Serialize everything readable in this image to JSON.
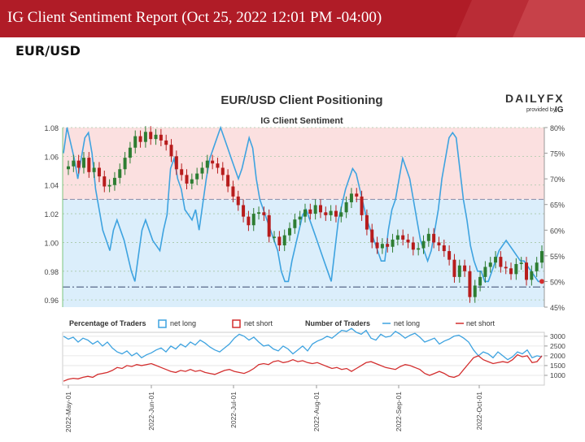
{
  "header": {
    "report_title": "IG Client Sentiment Report (Oct 25, 2022 12:01 PM -04:00)",
    "pair": "EUR/USD"
  },
  "colors": {
    "banner": "#b01c27",
    "net_long": "#3ea3e0",
    "net_short": "#d32f2f",
    "long_zone": "#dbeefb",
    "short_zone": "#fbe0e0",
    "candle_up": "#2e7d32",
    "candle_down": "#b71c1c"
  },
  "chart_data": [
    {
      "type": "line",
      "title": "EUR/USD Client Positioning",
      "subtitle": "IG Client Sentiment",
      "brand": {
        "main": "DAILYFX",
        "sub": "provided by",
        "mark": "IG"
      },
      "y_left": {
        "ticks": [
          "1.08",
          "1.06",
          "1.04",
          "1.02",
          "1.00",
          "0.98",
          "0.96"
        ],
        "range": [
          0.955,
          1.08
        ]
      },
      "y_right": {
        "ticks": [
          "80%",
          "75%",
          "70%",
          "65%",
          "60%",
          "55%",
          "50%",
          "45%"
        ],
        "range": [
          45,
          80
        ]
      },
      "reference_lines": {
        "price": 0.969,
        "percent": 66
      },
      "series": [
        {
          "role": "sentiment-net-long-pct",
          "axis": "right",
          "values": [
            75,
            80,
            77,
            74,
            70,
            74,
            78,
            79,
            75,
            68,
            64,
            60,
            58,
            56,
            60,
            62,
            60,
            58,
            55,
            52,
            50,
            55,
            60,
            62,
            60,
            58,
            57,
            56,
            60,
            63,
            72,
            74,
            70,
            68,
            64,
            63,
            62,
            64,
            60,
            65,
            70,
            74,
            76,
            78,
            80,
            78,
            76,
            74,
            72,
            70,
            72,
            75,
            78,
            76,
            70,
            66,
            64,
            62,
            60,
            58,
            56,
            52,
            50,
            50,
            54,
            57,
            60,
            63,
            64,
            62,
            60,
            58,
            56,
            54,
            52,
            50,
            56,
            62,
            65,
            68,
            70,
            72,
            71,
            68,
            65,
            62,
            60,
            58,
            56,
            54,
            54,
            60,
            64,
            66,
            70,
            74,
            72,
            70,
            66,
            62,
            58,
            56,
            54,
            56,
            60,
            64,
            70,
            74,
            78,
            79,
            78,
            72,
            66,
            62,
            57,
            54,
            52,
            52,
            50,
            50,
            52,
            54,
            56,
            57,
            58,
            57,
            56,
            55,
            54,
            54,
            53,
            52,
            51,
            50,
            50
          ]
        },
        {
          "role": "price-candles",
          "axis": "left",
          "values": [
            1.053,
            1.057,
            1.052,
            1.059,
            1.049,
            1.052,
            1.046,
            1.039,
            1.04,
            1.045,
            1.051,
            1.059,
            1.066,
            1.074,
            1.07,
            1.077,
            1.072,
            1.075,
            1.071,
            1.068,
            1.06,
            1.051,
            1.047,
            1.041,
            1.044,
            1.048,
            1.052,
            1.057,
            1.055,
            1.052,
            1.047,
            1.039,
            1.032,
            1.026,
            1.018,
            1.012,
            1.02,
            1.021,
            1.019,
            1.004,
            1.004,
            0.998,
            1.005,
            1.01,
            1.016,
            1.018,
            1.023,
            1.02,
            1.026,
            1.021,
            1.019,
            1.022,
            1.018,
            1.021,
            1.028,
            1.034,
            1.032,
            1.019,
            1.009,
            1.0,
            0.996,
            0.999,
            0.997,
            1.002,
            1.005,
            1.002,
            1.0,
            0.995,
            0.996,
            1.001,
            1.006,
            1.0,
            0.998,
            0.994,
            0.988,
            0.976,
            0.984,
            0.98,
            0.962,
            0.97,
            0.976,
            0.983,
            0.986,
            0.99,
            0.983,
            0.982,
            0.978,
            0.985,
            0.986,
            0.974,
            0.98,
            0.986,
            0.994
          ]
        }
      ]
    },
    {
      "type": "line",
      "legend": {
        "pct_label": "Percentage of Traders",
        "pct_long": "net long",
        "pct_short": "net short",
        "num_label": "Number of Traders",
        "num_long": "net long",
        "num_short": "net short"
      },
      "y_right": {
        "ticks": [
          "3000",
          "2500",
          "2000",
          "1500",
          "1000"
        ],
        "range": [
          500,
          3200
        ]
      },
      "x_labels": [
        "2022-May-01",
        "2022-Jun-01",
        "2022-Jul-01",
        "2022-Aug-01",
        "2022-Sep-01",
        "2022-Oct-01"
      ],
      "series": [
        {
          "name": "net long",
          "values": [
            3000,
            2850,
            2950,
            2700,
            2900,
            2800,
            2600,
            2750,
            2500,
            2700,
            2400,
            2200,
            2100,
            2250,
            2000,
            2150,
            1900,
            2050,
            2150,
            2300,
            2400,
            2200,
            2500,
            2350,
            2600,
            2450,
            2700,
            2550,
            2800,
            2650,
            2450,
            2300,
            2200,
            2400,
            2600,
            2900,
            3100,
            3000,
            2800,
            2950,
            2700,
            2500,
            2550,
            2350,
            2250,
            2500,
            2350,
            2100,
            2300,
            2500,
            2250,
            2600,
            2750,
            2850,
            3000,
            2900,
            3100,
            3300,
            3250,
            3400,
            3200,
            3100,
            3300,
            2900,
            2800,
            3100,
            2950,
            3000,
            3250,
            3100,
            2900,
            3050,
            3150,
            2950,
            2700,
            2800,
            2900,
            2600,
            2750,
            2850,
            3000,
            3050,
            2900,
            2700,
            2300,
            2000,
            2200,
            2100,
            1900,
            2200,
            2000,
            1800,
            1950,
            2200,
            2100,
            2300,
            1900,
            2000,
            1950
          ]
        },
        {
          "name": "net short",
          "values": [
            700,
            800,
            850,
            820,
            900,
            950,
            900,
            1050,
            1100,
            1150,
            1250,
            1400,
            1350,
            1500,
            1450,
            1550,
            1500,
            1550,
            1600,
            1500,
            1400,
            1300,
            1200,
            1150,
            1250,
            1200,
            1300,
            1200,
            1250,
            1150,
            1100,
            1050,
            1150,
            1250,
            1300,
            1200,
            1150,
            1100,
            1200,
            1350,
            1550,
            1600,
            1550,
            1700,
            1750,
            1650,
            1700,
            1800,
            1700,
            1750,
            1650,
            1600,
            1650,
            1550,
            1450,
            1350,
            1400,
            1300,
            1350,
            1200,
            1350,
            1500,
            1650,
            1700,
            1600,
            1500,
            1400,
            1350,
            1300,
            1450,
            1550,
            1500,
            1400,
            1300,
            1100,
            1000,
            1100,
            1200,
            1100,
            950,
            900,
            1000,
            1300,
            1600,
            1900,
            2000,
            1800,
            1700,
            1600,
            1650,
            1700,
            1650,
            1800,
            2050,
            1950,
            2000,
            1650,
            1700,
            2000
          ]
        }
      ]
    }
  ]
}
